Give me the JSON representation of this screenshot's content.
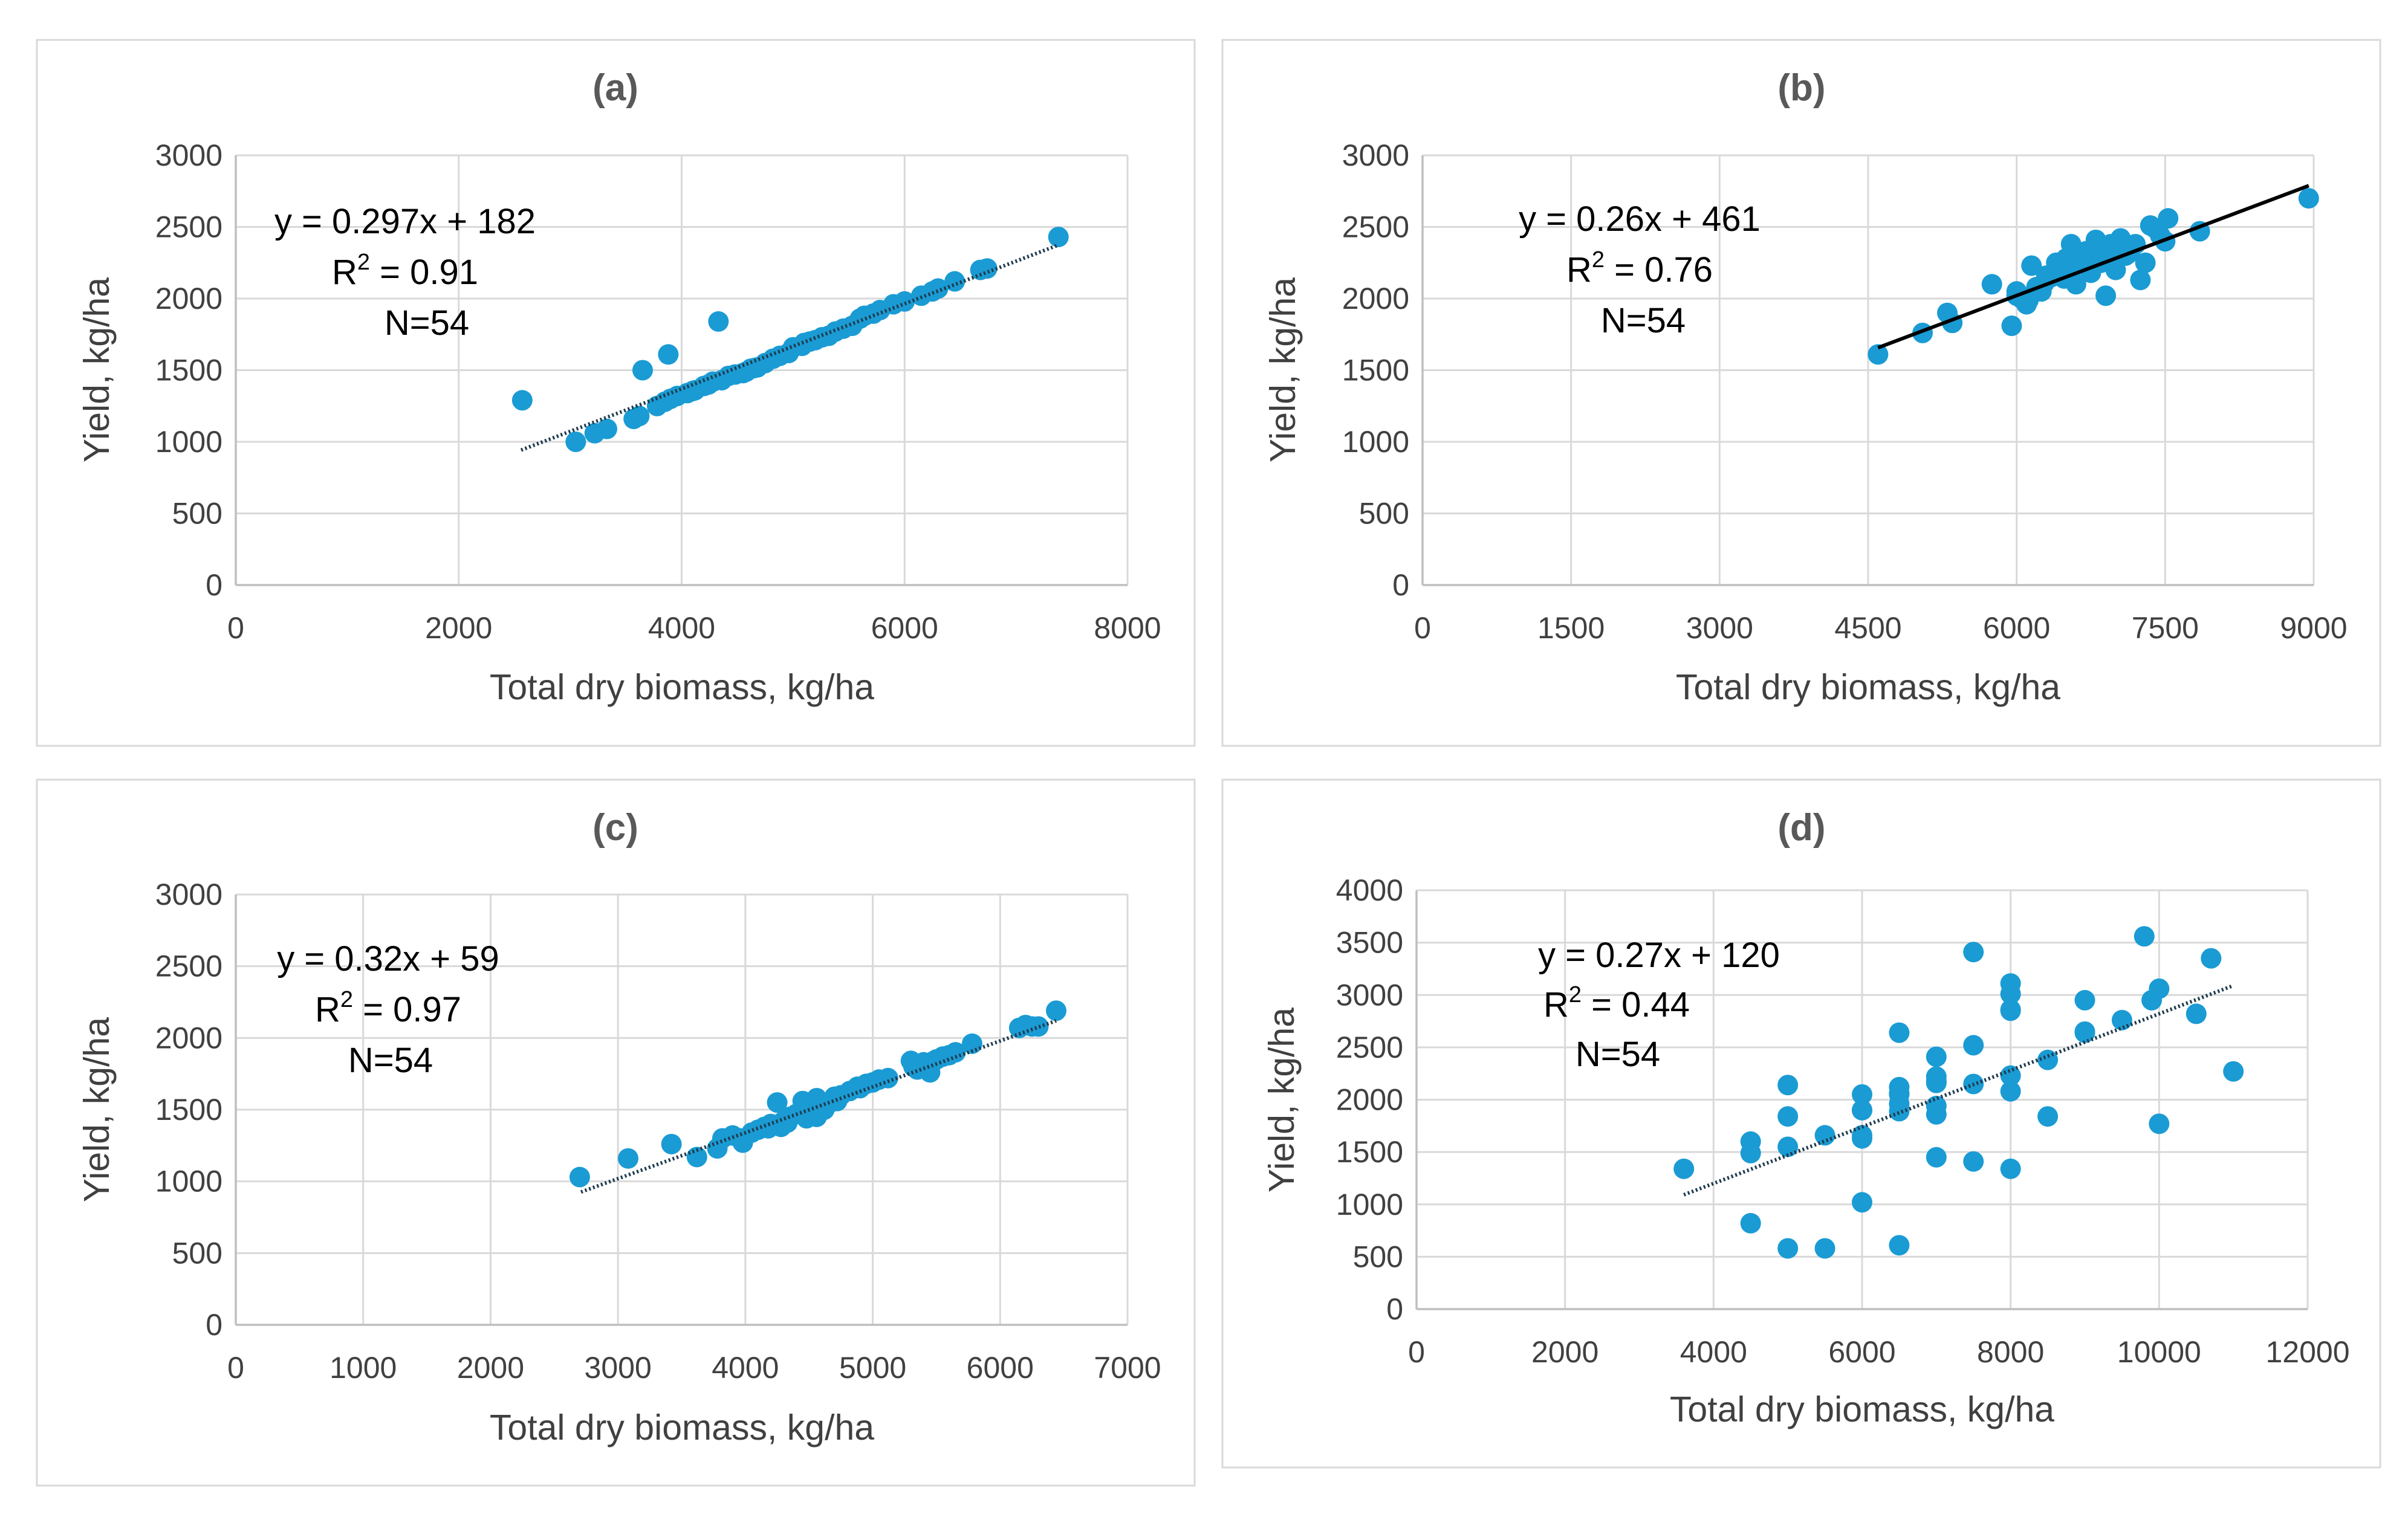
{
  "chart_data": [
    {
      "type": "scatter",
      "id": "a",
      "title": "(a)",
      "xlabel": "Total dry biomass, kg/ha",
      "ylabel": "Yield, kg/ha",
      "xlim": [
        0,
        8000
      ],
      "ylim": [
        0,
        3000
      ],
      "xticks": [
        0,
        2000,
        4000,
        6000,
        8000
      ],
      "yticks": [
        0,
        500,
        1000,
        1500,
        2000,
        2500,
        3000
      ],
      "grid": true,
      "equation": "y = 0.297x + 182",
      "r2_label": "R",
      "r2_sup": "2",
      "r2_value": " = 0.91",
      "n_label": "N=54",
      "trendline": {
        "slope": 0.297,
        "intercept": 182,
        "x_range": [
          2560,
          7380
        ],
        "style": "dotted"
      },
      "points": [
        [
          2570,
          1290
        ],
        [
          3050,
          1000
        ],
        [
          3220,
          1060
        ],
        [
          3330,
          1090
        ],
        [
          3570,
          1160
        ],
        [
          3620,
          1180
        ],
        [
          3650,
          1500
        ],
        [
          3780,
          1250
        ],
        [
          3850,
          1280
        ],
        [
          3880,
          1610
        ],
        [
          3960,
          1320
        ],
        [
          4050,
          1340
        ],
        [
          4120,
          1360
        ],
        [
          4200,
          1390
        ],
        [
          4280,
          1420
        ],
        [
          4330,
          1840
        ],
        [
          4360,
          1430
        ],
        [
          4420,
          1460
        ],
        [
          4480,
          1470
        ],
        [
          4550,
          1480
        ],
        [
          4620,
          1510
        ],
        [
          4680,
          1520
        ],
        [
          4750,
          1550
        ],
        [
          4820,
          1580
        ],
        [
          4880,
          1600
        ],
        [
          4960,
          1620
        ],
        [
          5000,
          1660
        ],
        [
          5080,
          1670
        ],
        [
          5150,
          1700
        ],
        [
          5200,
          1710
        ],
        [
          5260,
          1730
        ],
        [
          5320,
          1740
        ],
        [
          5380,
          1770
        ],
        [
          5450,
          1790
        ],
        [
          5530,
          1810
        ],
        [
          5640,
          1880
        ],
        [
          5780,
          1920
        ],
        [
          5900,
          1960
        ],
        [
          6000,
          1980
        ],
        [
          6250,
          2050
        ],
        [
          6300,
          2070
        ],
        [
          6450,
          2120
        ],
        [
          6680,
          2200
        ],
        [
          6740,
          2210
        ],
        [
          7380,
          2430
        ],
        [
          4100,
          1355
        ],
        [
          4650,
          1515
        ],
        [
          5100,
          1690
        ],
        [
          5600,
          1860
        ],
        [
          3900,
          1300
        ],
        [
          4580,
          1490
        ],
        [
          5720,
          1895
        ],
        [
          6150,
          2020
        ],
        [
          4240,
          1400
        ]
      ]
    },
    {
      "type": "scatter",
      "id": "b",
      "title": "(b)",
      "xlabel": "Total dry biomass, kg/ha",
      "ylabel": "Yield, kg/ha",
      "xlim": [
        0,
        9000
      ],
      "ylim": [
        0,
        3000
      ],
      "xticks": [
        0,
        1500,
        3000,
        4500,
        6000,
        7500,
        9000
      ],
      "yticks": [
        0,
        500,
        1000,
        1500,
        2000,
        2500,
        3000
      ],
      "grid": true,
      "equation": "y = 0.26x + 461",
      "r2_label": "R",
      "r2_sup": "2",
      "r2_value": " = 0.76",
      "n_label": "N=54",
      "trendline": {
        "slope": 0.26,
        "intercept": 461,
        "x_range": [
          4600,
          8950
        ],
        "style": "solid"
      },
      "points": [
        [
          4600,
          1610
        ],
        [
          5050,
          1760
        ],
        [
          5300,
          1900
        ],
        [
          5350,
          1830
        ],
        [
          5750,
          2100
        ],
        [
          5950,
          1810
        ],
        [
          6000,
          2050
        ],
        [
          6050,
          2000
        ],
        [
          6100,
          1960
        ],
        [
          6150,
          2230
        ],
        [
          6200,
          2080
        ],
        [
          6250,
          2050
        ],
        [
          6300,
          2160
        ],
        [
          6350,
          2150
        ],
        [
          6400,
          2250
        ],
        [
          6450,
          2200
        ],
        [
          6500,
          2280
        ],
        [
          6550,
          2380
        ],
        [
          6600,
          2100
        ],
        [
          6650,
          2280
        ],
        [
          6700,
          2330
        ],
        [
          6750,
          2180
        ],
        [
          6800,
          2410
        ],
        [
          6850,
          2250
        ],
        [
          6900,
          2020
        ],
        [
          6920,
          2300
        ],
        [
          6950,
          2380
        ],
        [
          7000,
          2200
        ],
        [
          7050,
          2420
        ],
        [
          7100,
          2300
        ],
        [
          7150,
          2340
        ],
        [
          7200,
          2380
        ],
        [
          7250,
          2130
        ],
        [
          7300,
          2250
        ],
        [
          7350,
          2510
        ],
        [
          7400,
          2490
        ],
        [
          7450,
          2440
        ],
        [
          7500,
          2400
        ],
        [
          7530,
          2560
        ],
        [
          7850,
          2470
        ],
        [
          8950,
          2700
        ],
        [
          6000,
          2020
        ],
        [
          6120,
          1990
        ],
        [
          6280,
          2110
        ],
        [
          6420,
          2180
        ],
        [
          6580,
          2220
        ],
        [
          6720,
          2250
        ],
        [
          6880,
          2350
        ],
        [
          7020,
          2280
        ],
        [
          7120,
          2310
        ],
        [
          6480,
          2140
        ],
        [
          6620,
          2260
        ],
        [
          6780,
          2290
        ],
        [
          6960,
          2320
        ]
      ]
    },
    {
      "type": "scatter",
      "id": "c",
      "title": "(c)",
      "xlabel": "Total dry biomass, kg/ha",
      "ylabel": "Yield, kg/ha",
      "xlim": [
        0,
        7000
      ],
      "ylim": [
        0,
        3000
      ],
      "xticks": [
        0,
        1000,
        2000,
        3000,
        4000,
        5000,
        6000,
        7000
      ],
      "yticks": [
        0,
        500,
        1000,
        1500,
        2000,
        2500,
        3000
      ],
      "grid": true,
      "equation": "y = 0.32x + 59",
      "r2_label": "R",
      "r2_sup": "2",
      "r2_value": " = 0.97",
      "n_label": "N=54",
      "trendline": {
        "slope": 0.32,
        "intercept": 59,
        "x_range": [
          2710,
          6440
        ],
        "style": "dotted"
      },
      "points": [
        [
          2700,
          1030
        ],
        [
          3080,
          1160
        ],
        [
          3420,
          1260
        ],
        [
          3620,
          1170
        ],
        [
          3780,
          1230
        ],
        [
          3820,
          1300
        ],
        [
          3900,
          1320
        ],
        [
          3980,
          1270
        ],
        [
          4050,
          1340
        ],
        [
          4100,
          1360
        ],
        [
          4150,
          1380
        ],
        [
          4200,
          1400
        ],
        [
          4250,
          1550
        ],
        [
          4280,
          1380
        ],
        [
          4300,
          1420
        ],
        [
          4350,
          1450
        ],
        [
          4400,
          1470
        ],
        [
          4450,
          1560
        ],
        [
          4480,
          1440
        ],
        [
          4520,
          1520
        ],
        [
          4560,
          1580
        ],
        [
          4600,
          1510
        ],
        [
          4650,
          1540
        ],
        [
          4700,
          1590
        ],
        [
          4750,
          1600
        ],
        [
          4820,
          1630
        ],
        [
          4880,
          1660
        ],
        [
          4950,
          1680
        ],
        [
          5000,
          1690
        ],
        [
          5050,
          1710
        ],
        [
          5300,
          1840
        ],
        [
          5350,
          1780
        ],
        [
          5400,
          1830
        ],
        [
          5450,
          1760
        ],
        [
          5500,
          1850
        ],
        [
          5550,
          1870
        ],
        [
          5600,
          1880
        ],
        [
          5650,
          1900
        ],
        [
          5780,
          1960
        ],
        [
          6150,
          2070
        ],
        [
          6200,
          2090
        ],
        [
          6250,
          2080
        ],
        [
          6300,
          2080
        ],
        [
          6440,
          2190
        ],
        [
          4560,
          1450
        ],
        [
          4180,
          1370
        ],
        [
          4620,
          1500
        ],
        [
          4900,
          1650
        ],
        [
          5320,
          1800
        ],
        [
          5480,
          1840
        ],
        [
          3960,
          1300
        ],
        [
          4330,
          1410
        ],
        [
          4720,
          1560
        ],
        [
          5120,
          1720
        ]
      ]
    },
    {
      "type": "scatter",
      "id": "d",
      "title": "(d)",
      "xlabel": "Total dry biomass, kg/ha",
      "ylabel": "Yield, kg/ha",
      "xlim": [
        0,
        12000
      ],
      "ylim": [
        0,
        4000
      ],
      "xticks": [
        0,
        2000,
        4000,
        6000,
        8000,
        10000,
        12000
      ],
      "yticks": [
        0,
        500,
        1000,
        1500,
        2000,
        2500,
        3000,
        3500,
        4000
      ],
      "grid": true,
      "equation": "y = 0.27x + 120",
      "r2_label": "R",
      "r2_sup": "2",
      "r2_value": " = 0.44",
      "n_label": "N=54",
      "trendline": {
        "slope": 0.27,
        "intercept": 120,
        "x_range": [
          3600,
          11000
        ],
        "style": "dotted"
      },
      "points": [
        [
          3600,
          1340
        ],
        [
          4500,
          1600
        ],
        [
          4500,
          1490
        ],
        [
          4500,
          820
        ],
        [
          5000,
          2140
        ],
        [
          5000,
          1840
        ],
        [
          5000,
          1550
        ],
        [
          5000,
          580
        ],
        [
          5500,
          1660
        ],
        [
          5500,
          580
        ],
        [
          6000,
          2050
        ],
        [
          6000,
          1900
        ],
        [
          6000,
          1660
        ],
        [
          6000,
          1630
        ],
        [
          6000,
          1020
        ],
        [
          6500,
          2640
        ],
        [
          6500,
          2120
        ],
        [
          6500,
          2050
        ],
        [
          6500,
          1960
        ],
        [
          6500,
          1890
        ],
        [
          6500,
          610
        ],
        [
          7000,
          2410
        ],
        [
          7000,
          2220
        ],
        [
          7000,
          2160
        ],
        [
          7000,
          1940
        ],
        [
          7000,
          1860
        ],
        [
          7000,
          1450
        ],
        [
          7500,
          3410
        ],
        [
          7500,
          2520
        ],
        [
          7500,
          2150
        ],
        [
          7500,
          1410
        ],
        [
          8000,
          3110
        ],
        [
          8000,
          3010
        ],
        [
          8000,
          2860
        ],
        [
          8000,
          2230
        ],
        [
          8000,
          2080
        ],
        [
          8000,
          1340
        ],
        [
          8500,
          2380
        ],
        [
          8500,
          1840
        ],
        [
          9000,
          2950
        ],
        [
          9000,
          2650
        ],
        [
          9500,
          2760
        ],
        [
          9800,
          3560
        ],
        [
          9900,
          2950
        ],
        [
          10000,
          3060
        ],
        [
          10000,
          1770
        ],
        [
          10500,
          2820
        ],
        [
          10700,
          3350
        ],
        [
          11000,
          2270
        ],
        [
          6000,
          1900
        ],
        [
          6500,
          2060
        ],
        [
          7000,
          2180
        ],
        [
          8000,
          2850
        ],
        [
          9000,
          2640
        ]
      ]
    }
  ]
}
